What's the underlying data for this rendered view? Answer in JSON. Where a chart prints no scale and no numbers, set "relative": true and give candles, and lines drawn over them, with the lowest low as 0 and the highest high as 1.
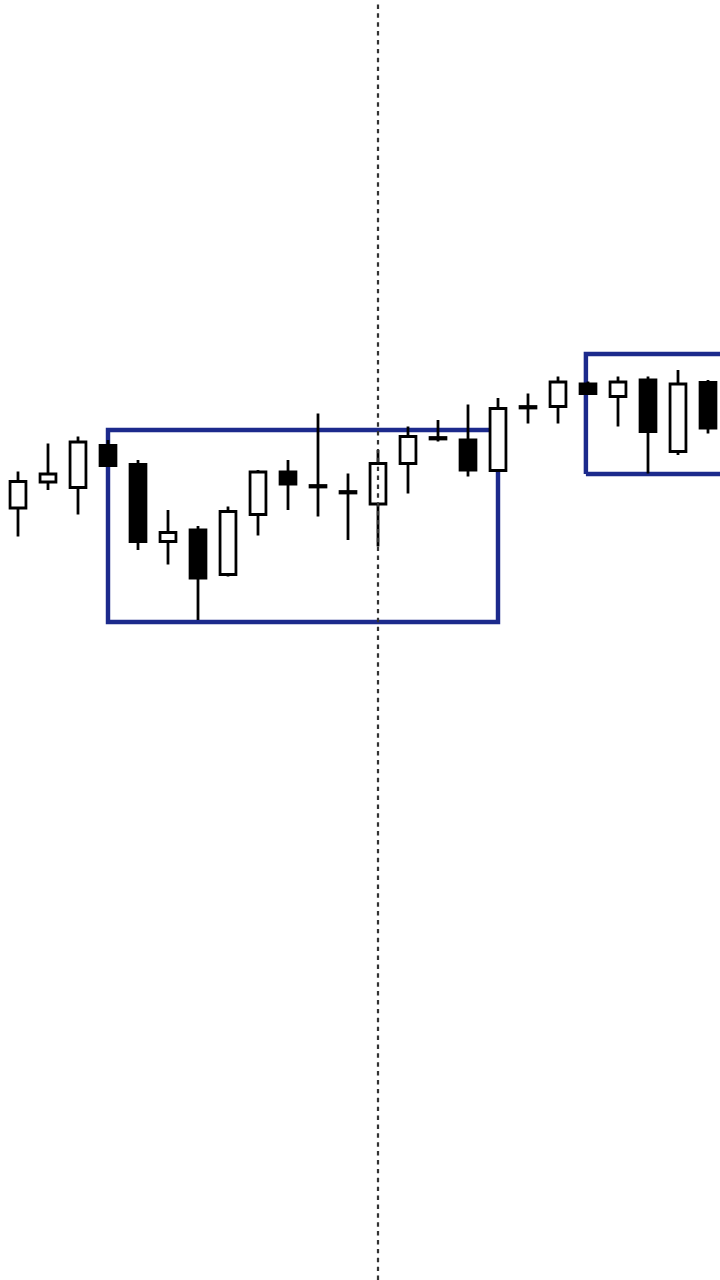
{
  "chart_data": {
    "type": "candlestick",
    "relative": true,
    "categories": [
      null,
      null,
      null,
      null,
      null,
      null,
      null,
      null,
      null,
      null,
      null,
      null,
      null,
      null,
      null,
      null,
      null,
      null,
      null,
      null,
      null,
      null,
      null,
      null
    ],
    "ohlc": [
      [
        0.448,
        0.594,
        0.334,
        0.554
      ],
      [
        0.552,
        0.706,
        0.52,
        0.584
      ],
      [
        0.53,
        0.734,
        0.422,
        0.712
      ],
      [
        0.698,
        0.72,
        0.616,
        0.618
      ],
      [
        0.622,
        0.64,
        0.28,
        0.314
      ],
      [
        0.314,
        0.44,
        0.222,
        0.35
      ],
      [
        0.36,
        0.376,
        0,
        0.168
      ],
      [
        0.182,
        0.454,
        0.174,
        0.434
      ],
      [
        0.422,
        0.6,
        0.338,
        0.592
      ],
      [
        0.592,
        0.64,
        0.44,
        0.544
      ],
      [
        0.536,
        0.826,
        0.414,
        0.532
      ],
      [
        0.512,
        0.586,
        0.32,
        0.508
      ],
      [
        0.464,
        0.68,
        0.294,
        0.626
      ],
      [
        0.626,
        0.774,
        0.506,
        0.734
      ],
      [
        0.728,
        0.8,
        0.714,
        0.724
      ],
      [
        0.72,
        0.862,
        0.574,
        0.6
      ],
      [
        0.598,
        0.888,
        0.598,
        0.846
      ],
      [
        0.85,
        0.906,
        0.786,
        0.848
      ],
      [
        0.854,
        0.974,
        0.786,
        0.952
      ],
      [
        0.944,
        0.954,
        0.902,
        0.906
      ],
      [
        0.894,
        0.974,
        0.774,
        0.952
      ],
      [
        0.96,
        0.974,
        0.586,
        0.754
      ],
      [
        0.674,
        1,
        0.66,
        0.944
      ],
      [
        0.95,
        0.96,
        0.746,
        0.768
      ]
    ]
  }
}
